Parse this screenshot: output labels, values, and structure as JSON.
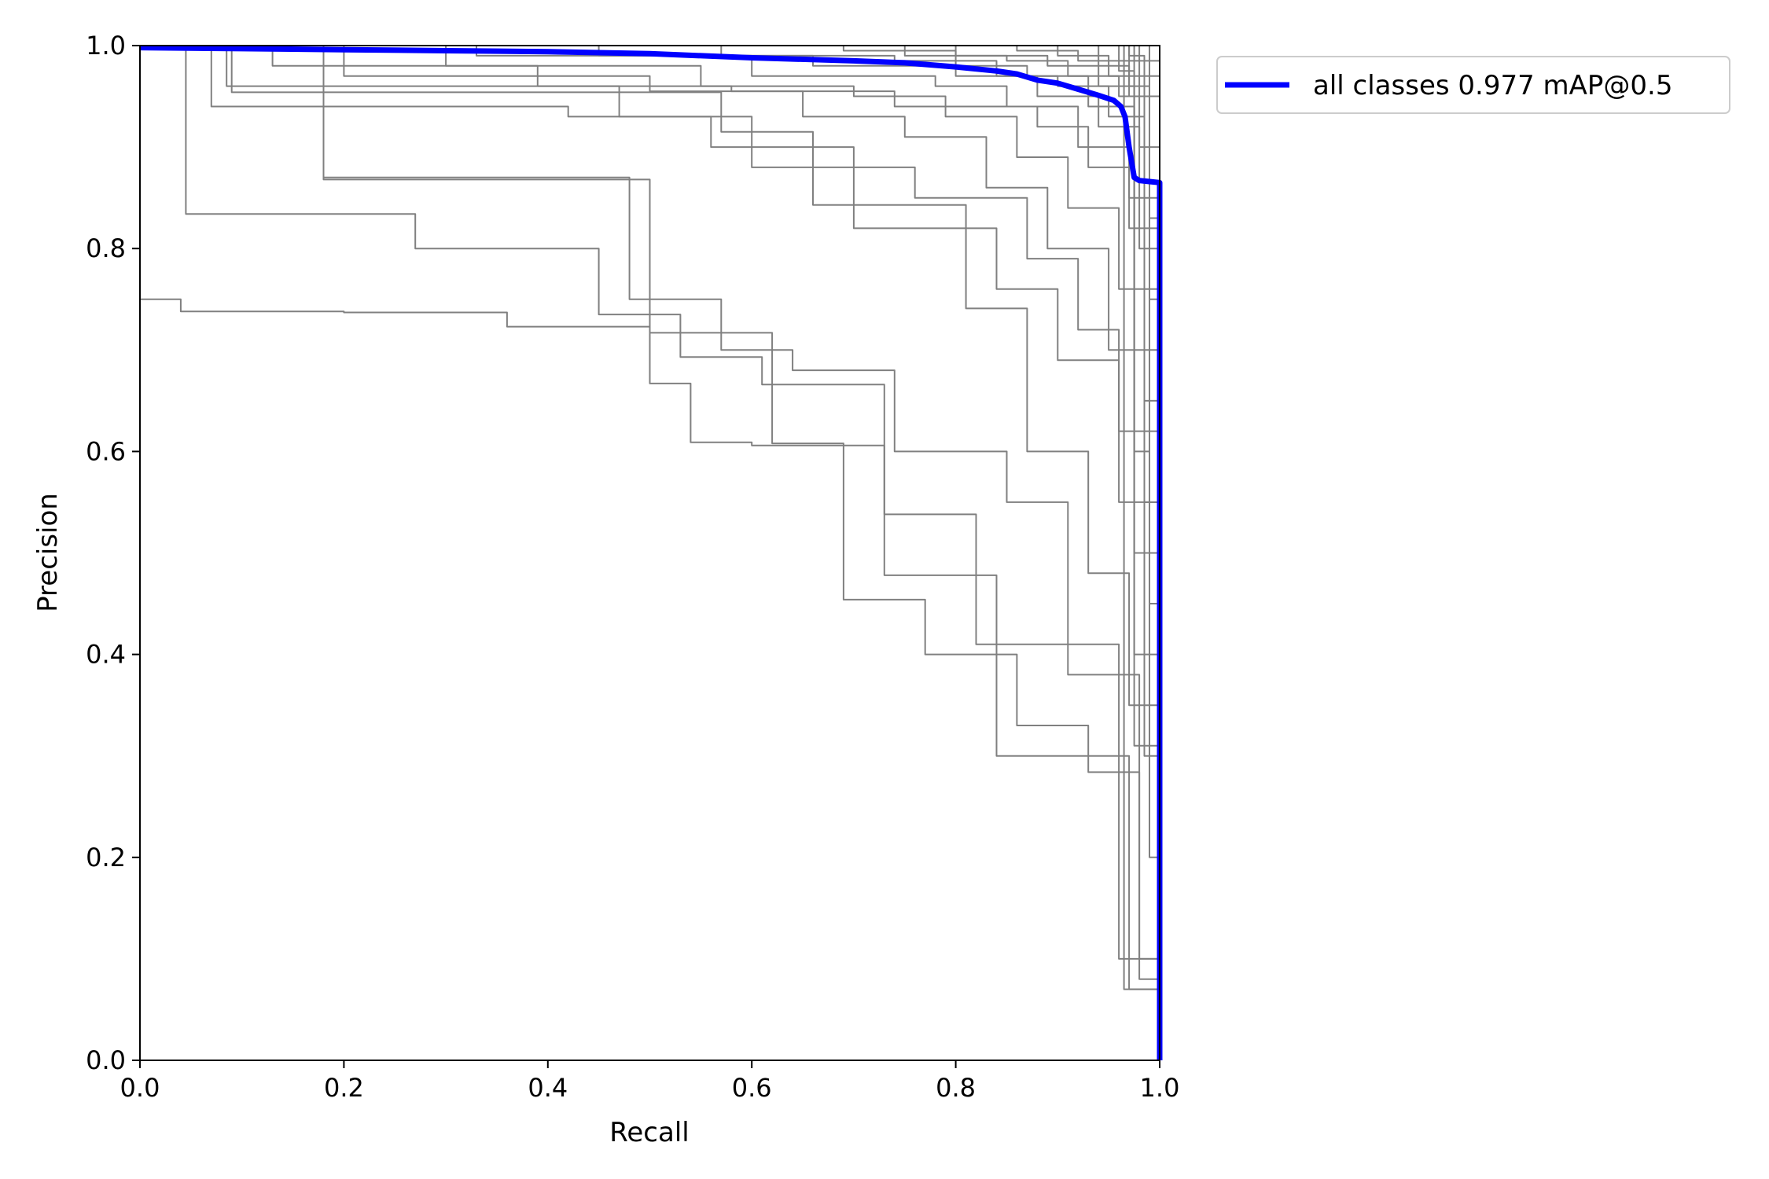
{
  "chart_data": {
    "type": "line",
    "title": "",
    "xlabel": "Recall",
    "ylabel": "Precision",
    "xlim": [
      0.0,
      1.0
    ],
    "ylim": [
      0.0,
      1.0
    ],
    "xticks": [
      "0.0",
      "0.2",
      "0.4",
      "0.6",
      "0.8",
      "1.0"
    ],
    "yticks": [
      "0.0",
      "0.2",
      "0.4",
      "0.6",
      "0.8",
      "1.0"
    ],
    "grid": false,
    "legend_position": "outside-top-right",
    "colors": {
      "per_class": "#808080",
      "all_classes": "#0000ff"
    },
    "series": [
      {
        "name": "all classes 0.977 mAP@0.5",
        "color": "#0000ff",
        "x": [
          0.0,
          0.1,
          0.2,
          0.3,
          0.4,
          0.5,
          0.6,
          0.7,
          0.75,
          0.8,
          0.84,
          0.86,
          0.88,
          0.9,
          0.92,
          0.94,
          0.955,
          0.962,
          0.966,
          0.97,
          0.975,
          0.98,
          0.99,
          1.0,
          1.0
        ],
        "y": [
          0.998,
          0.997,
          0.996,
          0.995,
          0.994,
          0.992,
          0.988,
          0.985,
          0.983,
          0.979,
          0.975,
          0.972,
          0.966,
          0.963,
          0.957,
          0.951,
          0.946,
          0.94,
          0.93,
          0.9,
          0.87,
          0.867,
          0.866,
          0.865,
          0.0
        ]
      },
      {
        "color": "#808080",
        "x": [
          0.0,
          0.04,
          0.04,
          0.2,
          0.2,
          0.36,
          0.36,
          0.5,
          0.5,
          0.54,
          0.54,
          0.6,
          0.6,
          0.73,
          0.73,
          0.84,
          0.84,
          0.97,
          0.97,
          1.0,
          1.0
        ],
        "y": [
          0.75,
          0.75,
          0.738,
          0.738,
          0.737,
          0.737,
          0.723,
          0.723,
          0.667,
          0.667,
          0.609,
          0.609,
          0.606,
          0.606,
          0.478,
          0.478,
          0.3,
          0.3,
          0.07,
          0.07,
          0.0
        ]
      },
      {
        "color": "#808080",
        "x": [
          0.0,
          0.045,
          0.045,
          0.27,
          0.27,
          0.45,
          0.45,
          0.53,
          0.53,
          0.61,
          0.61,
          0.73,
          0.73,
          0.82,
          0.82,
          0.96,
          0.96,
          1.0,
          1.0
        ],
        "y": [
          1.0,
          1.0,
          0.834,
          0.834,
          0.8,
          0.8,
          0.735,
          0.735,
          0.693,
          0.693,
          0.666,
          0.666,
          0.538,
          0.538,
          0.41,
          0.41,
          0.1,
          0.1,
          0.0
        ]
      },
      {
        "color": "#808080",
        "x": [
          0.0,
          0.18,
          0.18,
          0.5,
          0.5,
          0.62,
          0.62,
          0.69,
          0.69,
          0.77,
          0.77,
          0.86,
          0.86,
          0.93,
          0.93,
          0.98,
          0.98,
          1.0,
          1.0
        ],
        "y": [
          1.0,
          1.0,
          0.868,
          0.868,
          0.717,
          0.717,
          0.608,
          0.608,
          0.454,
          0.454,
          0.4,
          0.4,
          0.33,
          0.33,
          0.284,
          0.284,
          0.08,
          0.08,
          0.0
        ]
      },
      {
        "color": "#808080",
        "x": [
          0.0,
          0.18,
          0.18,
          0.48,
          0.48,
          0.57,
          0.57,
          0.64,
          0.64,
          0.74,
          0.74,
          0.85,
          0.85,
          0.91,
          0.91,
          0.98,
          0.98,
          1.0,
          1.0
        ],
        "y": [
          1.0,
          1.0,
          0.87,
          0.87,
          0.75,
          0.75,
          0.7,
          0.7,
          0.68,
          0.68,
          0.6,
          0.6,
          0.55,
          0.55,
          0.38,
          0.38,
          0.1,
          0.1,
          0.0
        ]
      },
      {
        "color": "#808080",
        "x": [
          0.0,
          0.09,
          0.09,
          0.57,
          0.57,
          0.66,
          0.66,
          0.81,
          0.81,
          0.87,
          0.87,
          0.93,
          0.93,
          0.97,
          0.97,
          1.0,
          1.0
        ],
        "y": [
          1.0,
          1.0,
          0.954,
          0.954,
          0.915,
          0.915,
          0.843,
          0.843,
          0.741,
          0.741,
          0.6,
          0.6,
          0.48,
          0.48,
          0.35,
          0.35,
          0.0
        ]
      },
      {
        "color": "#808080",
        "x": [
          0.0,
          0.085,
          0.085,
          0.47,
          0.47,
          0.56,
          0.56,
          0.7,
          0.7,
          0.84,
          0.84,
          0.9,
          0.9,
          0.96,
          0.96,
          1.0,
          1.0
        ],
        "y": [
          1.0,
          1.0,
          0.96,
          0.96,
          0.93,
          0.93,
          0.9,
          0.9,
          0.82,
          0.82,
          0.76,
          0.76,
          0.69,
          0.69,
          0.55,
          0.55,
          0.0
        ]
      },
      {
        "color": "#808080",
        "x": [
          0.0,
          0.07,
          0.07,
          0.42,
          0.42,
          0.6,
          0.6,
          0.76,
          0.76,
          0.87,
          0.87,
          0.92,
          0.92,
          0.96,
          0.96,
          1.0,
          1.0
        ],
        "y": [
          1.0,
          1.0,
          0.94,
          0.94,
          0.93,
          0.93,
          0.88,
          0.88,
          0.85,
          0.85,
          0.79,
          0.79,
          0.72,
          0.72,
          0.62,
          0.62,
          0.0
        ]
      },
      {
        "color": "#808080",
        "x": [
          0.0,
          0.2,
          0.2,
          0.5,
          0.5,
          0.65,
          0.65,
          0.75,
          0.75,
          0.83,
          0.83,
          0.89,
          0.89,
          0.95,
          0.95,
          1.0,
          1.0
        ],
        "y": [
          1.0,
          1.0,
          0.97,
          0.97,
          0.955,
          0.955,
          0.93,
          0.93,
          0.91,
          0.91,
          0.86,
          0.86,
          0.8,
          0.8,
          0.7,
          0.7,
          0.0
        ]
      },
      {
        "color": "#808080",
        "x": [
          0.0,
          0.3,
          0.3,
          0.55,
          0.55,
          0.7,
          0.7,
          0.79,
          0.79,
          0.86,
          0.86,
          0.91,
          0.91,
          0.96,
          0.96,
          1.0,
          1.0
        ],
        "y": [
          1.0,
          1.0,
          0.98,
          0.98,
          0.96,
          0.96,
          0.95,
          0.95,
          0.93,
          0.93,
          0.89,
          0.89,
          0.84,
          0.84,
          0.76,
          0.76,
          0.0
        ]
      },
      {
        "color": "#808080",
        "x": [
          0.0,
          0.13,
          0.13,
          0.39,
          0.39,
          0.58,
          0.58,
          0.74,
          0.74,
          0.88,
          0.88,
          0.93,
          0.93,
          0.97,
          0.97,
          1.0,
          1.0
        ],
        "y": [
          1.0,
          1.0,
          0.98,
          0.98,
          0.96,
          0.96,
          0.955,
          0.955,
          0.94,
          0.94,
          0.92,
          0.92,
          0.88,
          0.88,
          0.82,
          0.82,
          0.0
        ]
      },
      {
        "color": "#808080",
        "x": [
          0.0,
          0.33,
          0.33,
          0.6,
          0.6,
          0.78,
          0.78,
          0.85,
          0.85,
          0.92,
          0.92,
          0.97,
          0.97,
          1.0,
          1.0
        ],
        "y": [
          1.0,
          1.0,
          0.99,
          0.99,
          0.97,
          0.97,
          0.96,
          0.96,
          0.94,
          0.94,
          0.9,
          0.9,
          0.85,
          0.85,
          0.0
        ]
      },
      {
        "color": "#808080",
        "x": [
          0.0,
          0.45,
          0.45,
          0.66,
          0.66,
          0.8,
          0.8,
          0.88,
          0.88,
          0.94,
          0.94,
          0.98,
          0.98,
          1.0,
          1.0
        ],
        "y": [
          1.0,
          1.0,
          0.99,
          0.99,
          0.98,
          0.98,
          0.97,
          0.97,
          0.95,
          0.95,
          0.92,
          0.92,
          0.8,
          0.8,
          0.0
        ]
      },
      {
        "color": "#808080",
        "x": [
          0.0,
          0.57,
          0.57,
          0.74,
          0.74,
          0.84,
          0.84,
          0.9,
          0.9,
          0.95,
          0.95,
          0.985,
          0.985,
          1.0,
          1.0
        ],
        "y": [
          1.0,
          1.0,
          0.99,
          0.99,
          0.985,
          0.985,
          0.97,
          0.97,
          0.96,
          0.96,
          0.93,
          0.93,
          0.65,
          0.65,
          0.0
        ]
      },
      {
        "color": "#808080",
        "x": [
          0.0,
          0.69,
          0.69,
          0.8,
          0.8,
          0.87,
          0.87,
          0.93,
          0.93,
          0.975,
          0.975,
          1.0,
          1.0
        ],
        "y": [
          1.0,
          1.0,
          0.995,
          0.995,
          0.98,
          0.98,
          0.97,
          0.97,
          0.94,
          0.94,
          0.5,
          0.5,
          0.0
        ]
      },
      {
        "color": "#808080",
        "x": [
          0.0,
          0.75,
          0.75,
          0.85,
          0.85,
          0.91,
          0.91,
          0.96,
          0.96,
          0.99,
          0.99,
          1.0,
          1.0
        ],
        "y": [
          1.0,
          1.0,
          0.99,
          0.99,
          0.985,
          0.985,
          0.97,
          0.97,
          0.95,
          0.95,
          0.45,
          0.45,
          0.0
        ]
      },
      {
        "color": "#808080",
        "x": [
          0.0,
          0.8,
          0.8,
          0.89,
          0.89,
          0.94,
          0.94,
          0.975,
          0.975,
          1.0,
          1.0
        ],
        "y": [
          1.0,
          1.0,
          0.99,
          0.99,
          0.98,
          0.98,
          0.96,
          0.96,
          0.4,
          0.4,
          0.0
        ]
      },
      {
        "color": "#808080",
        "x": [
          0.0,
          0.86,
          0.86,
          0.92,
          0.92,
          0.97,
          0.97,
          0.99,
          0.99,
          1.0,
          1.0
        ],
        "y": [
          1.0,
          1.0,
          0.995,
          0.995,
          0.985,
          0.985,
          0.96,
          0.96,
          0.75,
          0.75,
          0.0
        ]
      },
      {
        "color": "#808080",
        "x": [
          0.0,
          0.9,
          0.9,
          0.95,
          0.95,
          0.98,
          0.98,
          1.0,
          1.0
        ],
        "y": [
          1.0,
          1.0,
          0.99,
          0.99,
          0.97,
          0.97,
          0.9,
          0.9,
          0.0
        ]
      },
      {
        "color": "#808080",
        "x": [
          0.0,
          0.94,
          0.94,
          0.97,
          0.97,
          0.985,
          0.985,
          1.0,
          1.0
        ],
        "y": [
          1.0,
          1.0,
          0.98,
          0.98,
          0.95,
          0.95,
          0.3,
          0.3,
          0.0
        ]
      },
      {
        "color": "#808080",
        "x": [
          0.0,
          0.96,
          0.96,
          0.975,
          0.975,
          0.99,
          0.99,
          1.0,
          1.0
        ],
        "y": [
          1.0,
          1.0,
          0.975,
          0.975,
          0.6,
          0.6,
          0.2,
          0.2,
          0.0
        ]
      },
      {
        "color": "#808080",
        "x": [
          0.0,
          0.97,
          0.97,
          0.985,
          0.985,
          1.0,
          1.0
        ],
        "y": [
          1.0,
          1.0,
          0.99,
          0.99,
          0.55,
          0.55,
          0.0
        ]
      },
      {
        "color": "#808080",
        "x": [
          0.0,
          0.98,
          0.98,
          1.0,
          1.0
        ],
        "y": [
          1.0,
          1.0,
          0.97,
          0.97,
          0.0
        ]
      },
      {
        "color": "#808080",
        "x": [
          0.0,
          0.99,
          0.99,
          1.0,
          1.0
        ],
        "y": [
          1.0,
          1.0,
          0.95,
          0.95,
          0.0
        ]
      },
      {
        "color": "#808080",
        "x": [
          0.0,
          0.97,
          0.97,
          1.0,
          1.0
        ],
        "y": [
          1.0,
          1.0,
          0.985,
          0.985,
          0.0
        ]
      },
      {
        "color": "#808080",
        "x": [
          0.0,
          0.965,
          0.965,
          1.0,
          1.0
        ],
        "y": [
          1.0,
          1.0,
          0.07,
          0.07,
          0.0
        ]
      },
      {
        "color": "#808080",
        "x": [
          0.0,
          0.975,
          0.975,
          1.0,
          1.0
        ],
        "y": [
          1.0,
          1.0,
          0.31,
          0.31,
          0.0
        ]
      },
      {
        "color": "#808080",
        "x": [
          0.0,
          0.99,
          0.99,
          1.0,
          1.0
        ],
        "y": [
          1.0,
          1.0,
          0.83,
          0.83,
          0.0
        ]
      }
    ]
  }
}
